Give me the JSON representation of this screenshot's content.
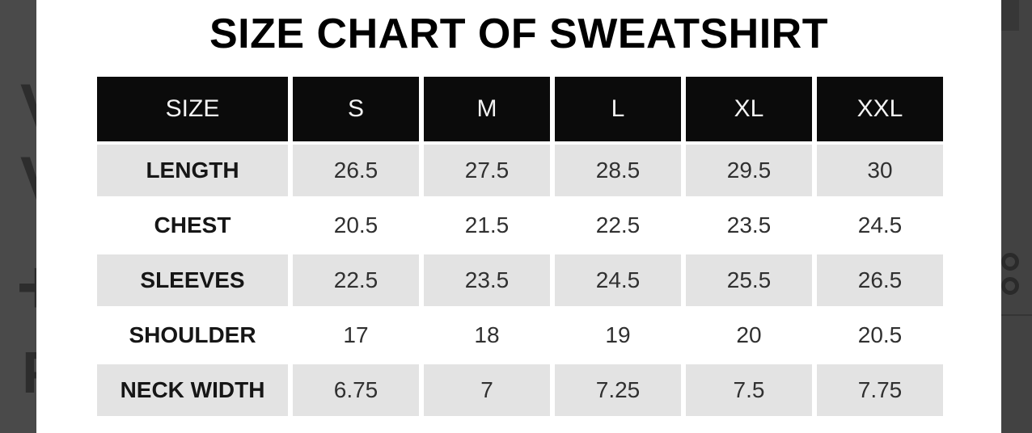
{
  "chart_data": {
    "type": "table",
    "title": "SIZE CHART OF SWEATSHIRT",
    "columns": [
      "SIZE",
      "S",
      "M",
      "L",
      "XL",
      "XXL"
    ],
    "rows": [
      {
        "label": "LENGTH",
        "values": [
          "26.5",
          "27.5",
          "28.5",
          "29.5",
          "30"
        ]
      },
      {
        "label": "CHEST",
        "values": [
          "20.5",
          "21.5",
          "22.5",
          "23.5",
          "24.5"
        ]
      },
      {
        "label": "SLEEVES",
        "values": [
          "22.5",
          "23.5",
          "24.5",
          "25.5",
          "26.5"
        ]
      },
      {
        "label": "SHOULDER",
        "values": [
          "17",
          "18",
          "19",
          "20",
          "20.5"
        ]
      },
      {
        "label": "NECK WIDTH",
        "values": [
          "6.75",
          "7",
          "7.25",
          "7.5",
          "7.75"
        ]
      }
    ],
    "layout": {
      "header_style": "black cells, white text, gaps between cells",
      "row_striping": "odd rows light gray, even rows white",
      "grid": "off"
    }
  },
  "colors": {
    "header_bg": "#0b0b0b",
    "header_text": "#f4f4f4",
    "stripe_row_bg": "#e3e3e3",
    "title_text": "#000000",
    "value_text": "#303030",
    "left_edge_bg": "#4a4a4a",
    "right_edge_bg": "#424242"
  },
  "edges": {
    "left_fragments": [
      "V",
      "V",
      "+",
      "P"
    ],
    "right_fragments": {
      "rings": 2
    }
  }
}
